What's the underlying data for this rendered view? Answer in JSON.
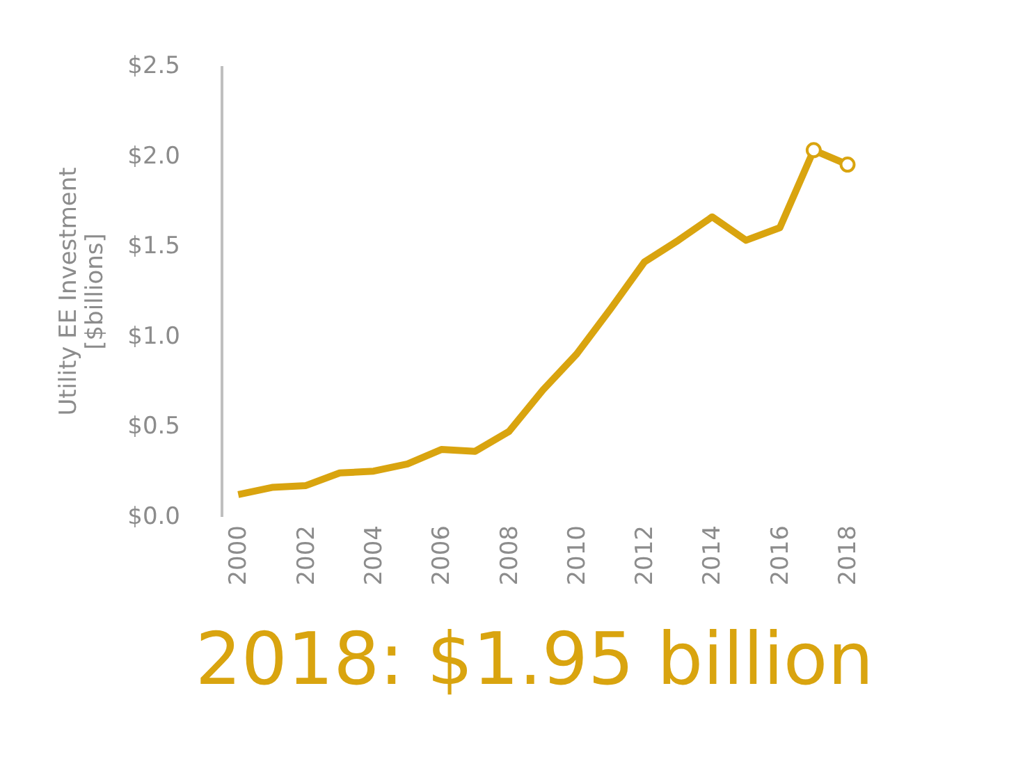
{
  "chart_data": {
    "type": "line",
    "ylabel": "Utility EE Investment\n[$billions]",
    "x": [
      2000,
      2001,
      2002,
      2003,
      2004,
      2005,
      2006,
      2007,
      2008,
      2009,
      2010,
      2011,
      2012,
      2013,
      2014,
      2015,
      2016,
      2017,
      2018
    ],
    "series": [
      {
        "color": "#d9a40f",
        "values": [
          0.12,
          0.16,
          0.17,
          0.24,
          0.25,
          0.29,
          0.37,
          0.36,
          0.47,
          0.7,
          0.9,
          1.15,
          1.41,
          1.53,
          1.66,
          1.53,
          1.6,
          2.03,
          1.95
        ]
      },
      {
        "type": "scatter",
        "color": "#d9a40f",
        "marker": "circle",
        "x": [
          2017,
          2018
        ],
        "values": [
          2.03,
          1.95
        ]
      }
    ],
    "xlim": [
      1999.5,
      2018
    ],
    "xticks": [
      2000,
      2002,
      2004,
      2006,
      2008,
      2010,
      2012,
      2014,
      2016,
      2018
    ],
    "ylim": [
      0,
      2.5
    ],
    "yticks": [
      {
        "value": 0,
        "label": "$0.0"
      },
      {
        "value": 0.5,
        "label": "$0.5"
      },
      {
        "value": 1.0,
        "label": "$1.0"
      },
      {
        "value": 1.5,
        "label": "$1.5"
      },
      {
        "value": 2.0,
        "label": "$2.0"
      },
      {
        "value": 2.5,
        "label": "$2.5"
      }
    ],
    "grid": false,
    "annotations": [
      "2018: $1.95 billion"
    ]
  }
}
